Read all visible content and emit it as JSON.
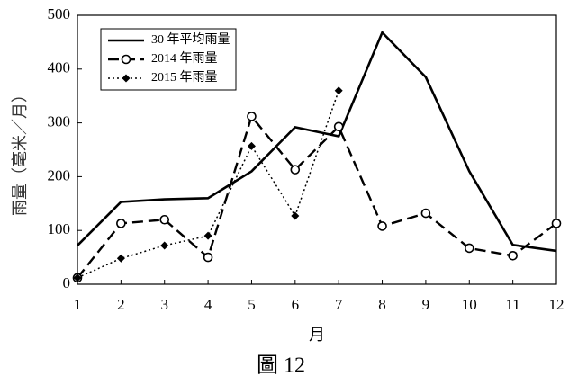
{
  "chart_data": {
    "type": "line",
    "caption": "圖 12",
    "x_label": "月",
    "y_label": "雨量（毫米／月）",
    "x": [
      1,
      2,
      3,
      4,
      5,
      6,
      7,
      8,
      9,
      10,
      11,
      12
    ],
    "xlim": [
      1,
      12
    ],
    "xticks": [
      1,
      2,
      3,
      4,
      5,
      6,
      7,
      8,
      9,
      10,
      11,
      12
    ],
    "ylim": [
      0,
      500
    ],
    "yticks": [
      0,
      100,
      200,
      300,
      400,
      500
    ],
    "legend": "upper-left",
    "series": [
      {
        "name": "30 年平均雨量",
        "color": "#000000",
        "dash": "solid",
        "marker": "none",
        "values": [
          72,
          153,
          158,
          160,
          210,
          292,
          275,
          468,
          385,
          210,
          73,
          62
        ]
      },
      {
        "name": "2014 年雨量",
        "color": "#000000",
        "dash": "dashed",
        "marker": "circle",
        "values": [
          12,
          113,
          120,
          50,
          312,
          213,
          293,
          108,
          132,
          67,
          53,
          113
        ]
      },
      {
        "name": "2015 年雨量",
        "color": "#000000",
        "dash": "dotted",
        "marker": "diamond",
        "values": [
          12,
          48,
          72,
          90,
          257,
          127,
          360,
          null,
          null,
          null,
          null,
          null
        ]
      }
    ]
  }
}
